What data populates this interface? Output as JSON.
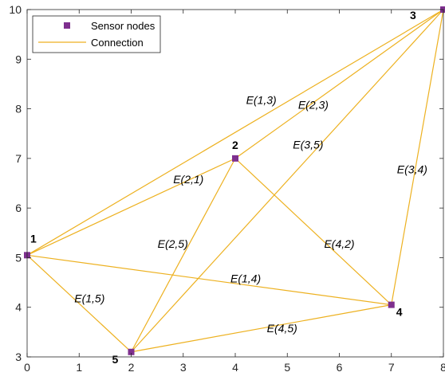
{
  "chart_data": {
    "type": "scatter",
    "title": "",
    "xlabel": "",
    "ylabel": "",
    "xlim": [
      0,
      8
    ],
    "ylim": [
      3,
      10
    ],
    "xticks": [
      0,
      1,
      2,
      3,
      4,
      5,
      6,
      7,
      8
    ],
    "yticks": [
      3,
      4,
      5,
      6,
      7,
      8,
      9,
      10
    ],
    "grid": false,
    "legend_position": "top-left",
    "legend": [
      {
        "name": "Sensor nodes",
        "kind": "marker",
        "color": "#7E2F8E"
      },
      {
        "name": "Connection",
        "kind": "line",
        "color": "#EDB120"
      }
    ],
    "nodes": [
      {
        "id": "1",
        "label": "1",
        "x": 0,
        "y": 5.05
      },
      {
        "id": "2",
        "label": "2",
        "x": 4,
        "y": 7.0
      },
      {
        "id": "3",
        "label": "3",
        "x": 8,
        "y": 10.0
      },
      {
        "id": "4",
        "label": "4",
        "x": 7,
        "y": 4.05
      },
      {
        "id": "5",
        "label": "5",
        "x": 2,
        "y": 3.1
      }
    ],
    "edges": [
      {
        "from": "1",
        "to": "3",
        "label": "E(1,3)",
        "label_x": 4.5,
        "label_y": 8.1
      },
      {
        "from": "2",
        "to": "3",
        "label": "E(2,3)",
        "label_x": 5.5,
        "label_y": 8.0
      },
      {
        "from": "3",
        "to": "5",
        "label": "E(3,5)",
        "label_x": 5.4,
        "label_y": 7.2
      },
      {
        "from": "3",
        "to": "4",
        "label": "E(3,4)",
        "label_x": 7.4,
        "label_y": 6.7
      },
      {
        "from": "1",
        "to": "2",
        "label": "E(2,1)",
        "label_x": 3.1,
        "label_y": 6.5
      },
      {
        "from": "2",
        "to": "5",
        "label": "E(2,5)",
        "label_x": 2.8,
        "label_y": 5.2
      },
      {
        "from": "2",
        "to": "4",
        "label": "E(4,2)",
        "label_x": 6.0,
        "label_y": 5.2
      },
      {
        "from": "1",
        "to": "4",
        "label": "E(1,4)",
        "label_x": 4.2,
        "label_y": 4.5
      },
      {
        "from": "1",
        "to": "5",
        "label": "E(1,5)",
        "label_x": 1.2,
        "label_y": 4.1
      },
      {
        "from": "5",
        "to": "4",
        "label": "E(4,5)",
        "label_x": 4.9,
        "label_y": 3.5
      }
    ],
    "colors": {
      "node": "#7E2F8E",
      "edge": "#EDB120",
      "axis": "#262626"
    }
  }
}
